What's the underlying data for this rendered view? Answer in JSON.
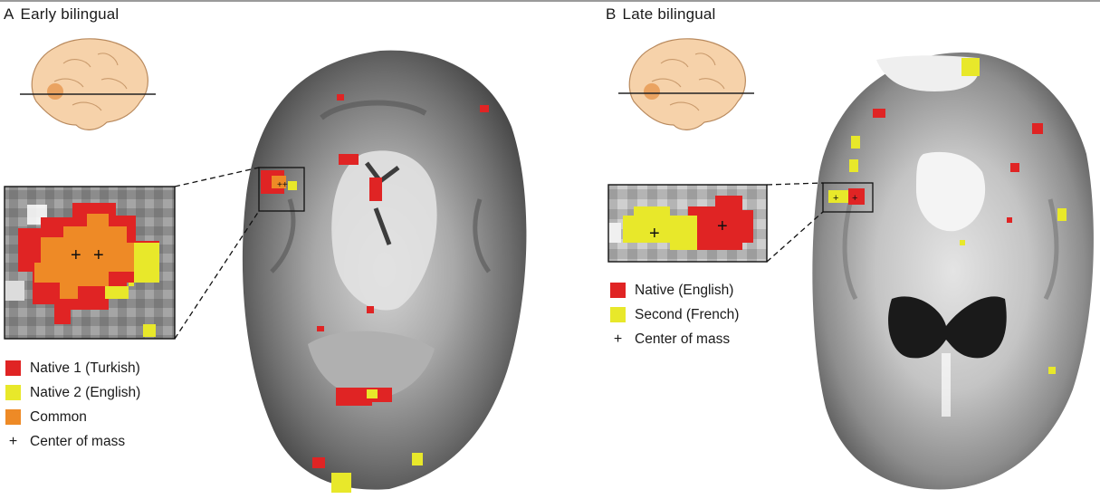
{
  "panels": [
    {
      "letter": "A",
      "title": "Early bilingual",
      "legend": [
        {
          "label": "Native 1 (Turkish)",
          "kind": "swatch",
          "color": "#e02424"
        },
        {
          "label": "Native 2 (English)",
          "kind": "swatch",
          "color": "#e8e82a"
        },
        {
          "label": "Common",
          "kind": "swatch",
          "color": "#ee8a26"
        },
        {
          "label": "Center of mass",
          "kind": "plus",
          "color": ""
        }
      ]
    },
    {
      "letter": "B",
      "title": "Late bilingual",
      "legend": [
        {
          "label": "Native (English)",
          "kind": "swatch",
          "color": "#e02424"
        },
        {
          "label": "Second (French)",
          "kind": "swatch",
          "color": "#e8e82a"
        },
        {
          "label": "Center of mass",
          "kind": "plus",
          "color": ""
        }
      ]
    }
  ],
  "colors": {
    "native_red": "#e02424",
    "second_yellow": "#e8e82a",
    "common_orange": "#ee8a26",
    "brain_icon": "#f6d2aa"
  }
}
